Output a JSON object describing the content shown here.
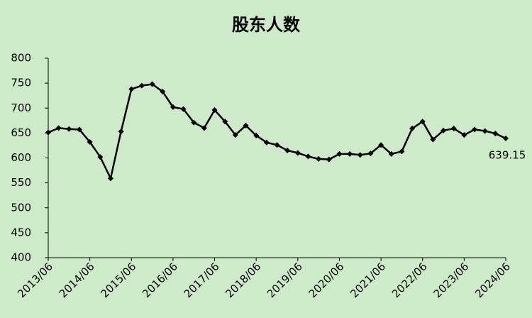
{
  "chart_data": {
    "type": "line",
    "title": "股东人数",
    "categories": [
      "2013/06",
      null,
      null,
      null,
      "2014/06",
      null,
      null,
      null,
      "2015/06",
      null,
      null,
      null,
      "2016/06",
      null,
      null,
      null,
      "2017/06",
      null,
      null,
      null,
      "2018/06",
      null,
      null,
      null,
      "2019/06",
      null,
      null,
      null,
      "2020/06",
      null,
      null,
      null,
      "2021/06",
      null,
      null,
      null,
      "2022/06",
      null,
      null,
      null,
      "2023/06",
      null,
      null,
      null,
      "2024/06"
    ],
    "values": [
      651,
      660,
      658,
      657,
      632,
      602,
      559,
      653,
      738,
      745,
      748,
      733,
      702,
      698,
      671,
      660,
      696,
      673,
      646,
      665,
      645,
      631,
      626,
      615,
      610,
      603,
      598,
      597,
      608,
      608,
      606,
      609,
      626,
      608,
      613,
      659,
      673,
      637,
      655,
      659,
      646,
      657,
      654,
      649,
      639.15
    ],
    "color": "#000000",
    "ylim": [
      400,
      800
    ],
    "yticks": [
      400,
      450,
      500,
      550,
      600,
      650,
      700,
      750,
      800
    ],
    "grid": false
  }
}
